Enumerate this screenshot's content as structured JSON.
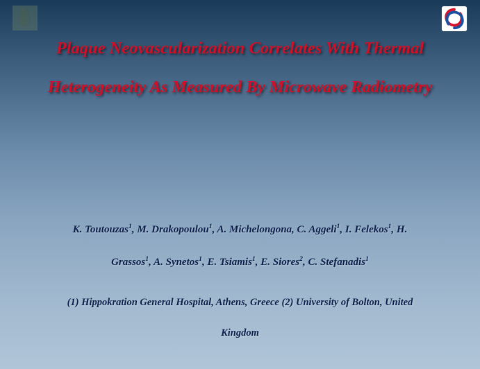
{
  "slide": {
    "background_colors": [
      "#1a3a5a",
      "#3a5a7a",
      "#6a8aaa",
      "#8aa5c0",
      "#a0b8ce",
      "#b0c5d8"
    ],
    "title": {
      "line1": "Plaque Neovascularization Correlates With Thermal",
      "line2": "Heterogeneity As Measured By Microwave Radiometry",
      "color": "#d01028",
      "fontsize": 24.5,
      "font_style": "bold italic",
      "text_shadow": "2px 2px 3px rgba(0,0,0,0.55)"
    },
    "authors": {
      "line1_html": "K. Toutouzas<sup>1</sup>, M. Drakopoulou<sup>1</sup>, A. Michelongona, C. Aggeli<sup>1</sup>, I. Felekos<sup>1</sup>, H.",
      "line2_html": "Grassos<sup>1</sup>, A. Synetos<sup>1</sup>, E. Tsiamis<sup>1</sup>, E. Siores<sup>2</sup>, C. Stefanadis<sup>1</sup>",
      "color": "#0a1e4a",
      "fontsize": 15,
      "font_style": "bold italic"
    },
    "affiliation": {
      "line1": "(1) Hippokration General Hospital, Athens, Greece (2) University of Bolton, United",
      "line2": "Kingdom",
      "color": "#0a1e4a",
      "fontsize": 14.5,
      "font_style": "bold italic"
    },
    "icons": {
      "left": "statue-relief-icon",
      "right": "swirl-logo-icon",
      "right_colors": {
        "red": "#d6122b",
        "blue": "#1b4fa0"
      }
    }
  }
}
